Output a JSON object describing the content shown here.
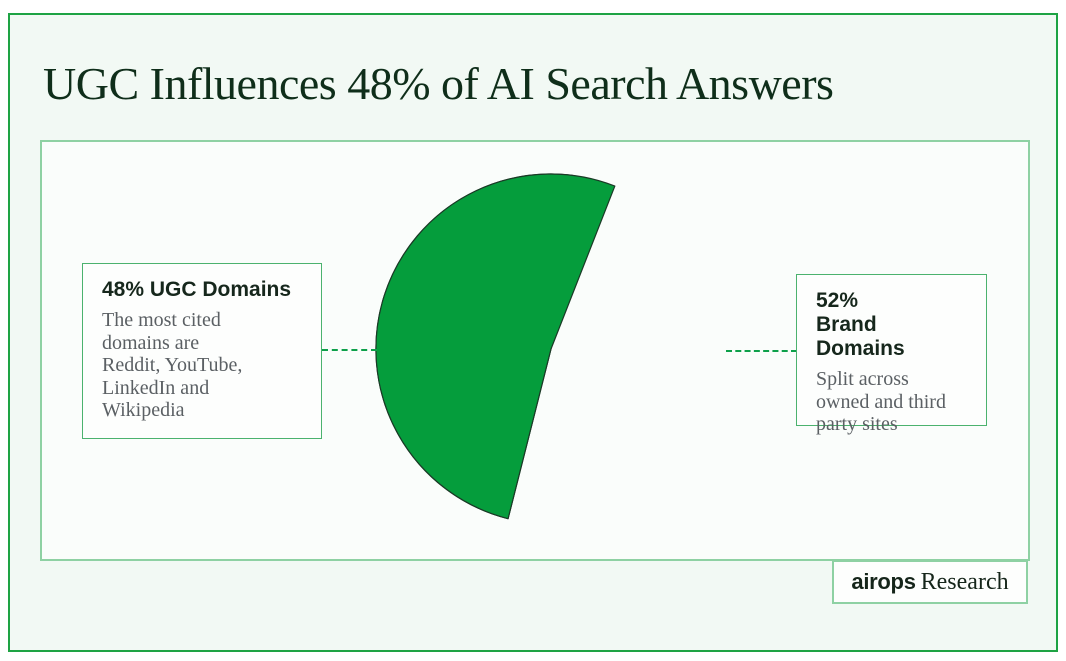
{
  "page": {
    "title": "UGC Influences 48% of AI Search Answers"
  },
  "chart_data": {
    "type": "pie",
    "title": "UGC Influences 48% of AI Search Answers",
    "categories": [
      "UGC Domains",
      "Brand Domains"
    ],
    "values": [
      48,
      52
    ],
    "colors": [
      "#ccf9dc",
      "#059d3c"
    ],
    "stroke_color": "#1a3a26",
    "start_angle_deg": 194.2,
    "legend_position": "none",
    "annotations": [
      "48% UGC Domains — The most cited domains are Reddit, YouTube, LinkedIn and Wikipedia",
      "52% Brand Domains — Split across owned and third party sites"
    ]
  },
  "callouts": {
    "left": {
      "title": "48% UGC Domains",
      "body": "The most cited\ndomains are\nReddit, YouTube,\nLinkedIn and\nWikipedia"
    },
    "right": {
      "title": "52%\nBrand Domains",
      "body": "Split across\nowned and third\nparty sites"
    }
  },
  "badge": {
    "brand": "airops",
    "label": "Research"
  },
  "theme": {
    "accent_green": "#0da04a",
    "outer_border": "#1ea344",
    "inner_border": "#8ed1a3",
    "card_border": "#4bb26e",
    "pie_light": "#ccf9dc",
    "pie_dark": "#059d3c",
    "heading_text": "#0f2e1a",
    "body_text": "#5b6064"
  }
}
